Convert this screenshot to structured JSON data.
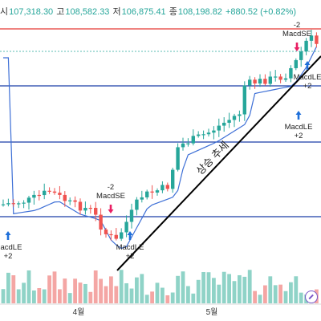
{
  "header": {
    "open_label": "시",
    "open": "107,318.30",
    "high_label": "고",
    "high": "108,582.33",
    "low_label": "저",
    "low": "106,875.41",
    "close_label": "종",
    "close": "108,198.82",
    "change": "+880.52 (+0.82%)"
  },
  "chart_data": {
    "type": "candlestick",
    "x_ticks": [
      "4월",
      "5월"
    ],
    "horizontal_levels": [
      {
        "kind": "resistance",
        "color": "#e53935"
      },
      {
        "kind": "support",
        "color": "#1a3ea8"
      },
      {
        "kind": "support",
        "color": "#1a3ea8"
      },
      {
        "kind": "support",
        "color": "#1a3ea8"
      }
    ],
    "trendline_label": "상승 추세",
    "signals": [
      {
        "text": "MacdLE",
        "qty": "+2",
        "direction": "up",
        "color": "#1e6fd9"
      },
      {
        "text": "MacdSE",
        "qty": "-2",
        "direction": "down",
        "color": "#e91e63"
      },
      {
        "text": "MacdLE",
        "qty": "+2",
        "direction": "up",
        "color": "#1e6fd9"
      },
      {
        "text": "MacdLE",
        "qty": "+2",
        "direction": "up",
        "color": "#1e6fd9"
      },
      {
        "text": "MacdSE",
        "qty": "-2",
        "direction": "down",
        "color": "#e91e63"
      },
      {
        "text": "MacdLE",
        "qty": "+2",
        "direction": "up",
        "color": "#1e6fd9"
      }
    ],
    "colors": {
      "up": "#26a69a",
      "down": "#ef5350",
      "vol_up": "#8fd3c7",
      "vol_down": "#f4a6a4",
      "ma": "#3d6fd6"
    },
    "grid": false
  }
}
